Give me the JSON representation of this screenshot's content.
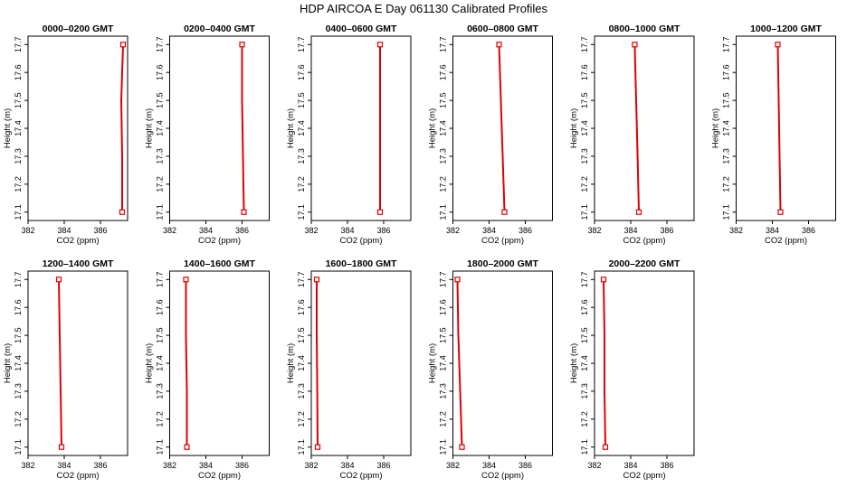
{
  "figure": {
    "title": "HDP  AIRCOA E  Day 061130  Calibrated Profiles"
  },
  "chart_data": [
    {
      "type": "line",
      "title": "0000–0200 GMT",
      "xlabel": "CO2 (ppm)",
      "ylabel": "Height (m)",
      "xlim": [
        382,
        387.5
      ],
      "ylim": [
        17.07,
        17.73
      ],
      "xticks": [
        "382",
        "384",
        "386"
      ],
      "yticks": [
        "17.1",
        "17.2",
        "17.3",
        "17.4",
        "17.5",
        "17.6",
        "17.7"
      ],
      "series": [
        {
          "x": [
            387.2,
            387.2,
            387.15,
            387.25
          ],
          "y": [
            17.1,
            17.3,
            17.5,
            17.7
          ]
        }
      ]
    },
    {
      "type": "line",
      "title": "0200–0400 GMT",
      "xlabel": "CO2 (ppm)",
      "ylabel": "Height (m)",
      "xlim": [
        382,
        387.5
      ],
      "ylim": [
        17.07,
        17.73
      ],
      "xticks": [
        "382",
        "384",
        "386"
      ],
      "yticks": [
        "17.1",
        "17.2",
        "17.3",
        "17.4",
        "17.5",
        "17.6",
        "17.7"
      ],
      "series": [
        {
          "x": [
            386.1,
            386.05,
            386.0,
            386.0
          ],
          "y": [
            17.1,
            17.3,
            17.5,
            17.7
          ]
        }
      ]
    },
    {
      "type": "line",
      "title": "0400–0600 GMT",
      "xlabel": "CO2 (ppm)",
      "ylabel": "Height (m)",
      "xlim": [
        382,
        387.5
      ],
      "ylim": [
        17.07,
        17.73
      ],
      "xticks": [
        "382",
        "384",
        "386"
      ],
      "yticks": [
        "17.1",
        "17.2",
        "17.3",
        "17.4",
        "17.5",
        "17.6",
        "17.7"
      ],
      "series": [
        {
          "x": [
            385.8,
            385.8,
            385.8,
            385.8
          ],
          "y": [
            17.1,
            17.3,
            17.5,
            17.7
          ]
        }
      ]
    },
    {
      "type": "line",
      "title": "0600–0800 GMT",
      "xlabel": "CO2 (ppm)",
      "ylabel": "Height (m)",
      "xlim": [
        382,
        387.5
      ],
      "ylim": [
        17.07,
        17.73
      ],
      "xticks": [
        "382",
        "384",
        "386"
      ],
      "yticks": [
        "17.1",
        "17.2",
        "17.3",
        "17.4",
        "17.5",
        "17.6",
        "17.7"
      ],
      "series": [
        {
          "x": [
            384.85,
            384.75,
            384.65,
            384.55
          ],
          "y": [
            17.1,
            17.3,
            17.5,
            17.7
          ]
        }
      ]
    },
    {
      "type": "line",
      "title": "0800–1000 GMT",
      "xlabel": "CO2 (ppm)",
      "ylabel": "Height (m)",
      "xlim": [
        382,
        387.5
      ],
      "ylim": [
        17.07,
        17.73
      ],
      "xticks": [
        "382",
        "384",
        "386"
      ],
      "yticks": [
        "17.1",
        "17.2",
        "17.3",
        "17.4",
        "17.5",
        "17.6",
        "17.7"
      ],
      "series": [
        {
          "x": [
            384.45,
            384.38,
            384.3,
            384.22
          ],
          "y": [
            17.1,
            17.3,
            17.5,
            17.7
          ]
        }
      ]
    },
    {
      "type": "line",
      "title": "1000–1200 GMT",
      "xlabel": "CO2 (ppm)",
      "ylabel": "Height (m)",
      "xlim": [
        382,
        387.5
      ],
      "ylim": [
        17.07,
        17.73
      ],
      "xticks": [
        "382",
        "384",
        "386"
      ],
      "yticks": [
        "17.1",
        "17.2",
        "17.3",
        "17.4",
        "17.5",
        "17.6",
        "17.7"
      ],
      "series": [
        {
          "x": [
            384.45,
            384.4,
            384.35,
            384.3
          ],
          "y": [
            17.1,
            17.3,
            17.5,
            17.7
          ]
        }
      ]
    },
    {
      "type": "line",
      "title": "1200–1400 GMT",
      "xlabel": "CO2 (ppm)",
      "ylabel": "Height (m)",
      "xlim": [
        382,
        387.5
      ],
      "ylim": [
        17.07,
        17.73
      ],
      "xticks": [
        "382",
        "384",
        "386"
      ],
      "yticks": [
        "17.1",
        "17.2",
        "17.3",
        "17.4",
        "17.5",
        "17.6",
        "17.7"
      ],
      "series": [
        {
          "x": [
            383.85,
            383.8,
            383.75,
            383.7
          ],
          "y": [
            17.1,
            17.3,
            17.5,
            17.7
          ]
        }
      ]
    },
    {
      "type": "line",
      "title": "1400–1600 GMT",
      "xlabel": "CO2 (ppm)",
      "ylabel": "Height (m)",
      "xlim": [
        382,
        387.5
      ],
      "ylim": [
        17.07,
        17.73
      ],
      "xticks": [
        "382",
        "384",
        "386"
      ],
      "yticks": [
        "17.1",
        "17.2",
        "17.3",
        "17.4",
        "17.5",
        "17.6",
        "17.7"
      ],
      "series": [
        {
          "x": [
            382.95,
            382.95,
            382.9,
            382.9
          ],
          "y": [
            17.1,
            17.3,
            17.5,
            17.7
          ]
        }
      ]
    },
    {
      "type": "line",
      "title": "1600–1800 GMT",
      "xlabel": "CO2 (ppm)",
      "ylabel": "Height (m)",
      "xlim": [
        382,
        387.5
      ],
      "ylim": [
        17.07,
        17.73
      ],
      "xticks": [
        "382",
        "384",
        "386"
      ],
      "yticks": [
        "17.1",
        "17.2",
        "17.3",
        "17.4",
        "17.5",
        "17.6",
        "17.7"
      ],
      "series": [
        {
          "x": [
            382.35,
            382.33,
            382.3,
            382.3
          ],
          "y": [
            17.1,
            17.3,
            17.5,
            17.7
          ]
        }
      ]
    },
    {
      "type": "line",
      "title": "1800–2000 GMT",
      "xlabel": "CO2 (ppm)",
      "ylabel": "Height (m)",
      "xlim": [
        382,
        387.5
      ],
      "ylim": [
        17.07,
        17.73
      ],
      "xticks": [
        "382",
        "384",
        "386"
      ],
      "yticks": [
        "17.1",
        "17.2",
        "17.3",
        "17.4",
        "17.5",
        "17.6",
        "17.7"
      ],
      "series": [
        {
          "x": [
            382.5,
            382.4,
            382.3,
            382.25
          ],
          "y": [
            17.1,
            17.3,
            17.5,
            17.7
          ]
        }
      ]
    },
    {
      "type": "line",
      "title": "2000–2200 GMT",
      "xlabel": "CO2 (ppm)",
      "ylabel": "Height (m)",
      "xlim": [
        382,
        387.5
      ],
      "ylim": [
        17.07,
        17.73
      ],
      "xticks": [
        "382",
        "384",
        "386"
      ],
      "yticks": [
        "17.1",
        "17.2",
        "17.3",
        "17.4",
        "17.5",
        "17.6",
        "17.7"
      ],
      "series": [
        {
          "x": [
            382.6,
            382.55,
            382.55,
            382.5
          ],
          "y": [
            17.1,
            17.3,
            17.5,
            17.7
          ]
        }
      ]
    }
  ],
  "colors": {
    "line": "#e00000",
    "axes": "#000000"
  }
}
